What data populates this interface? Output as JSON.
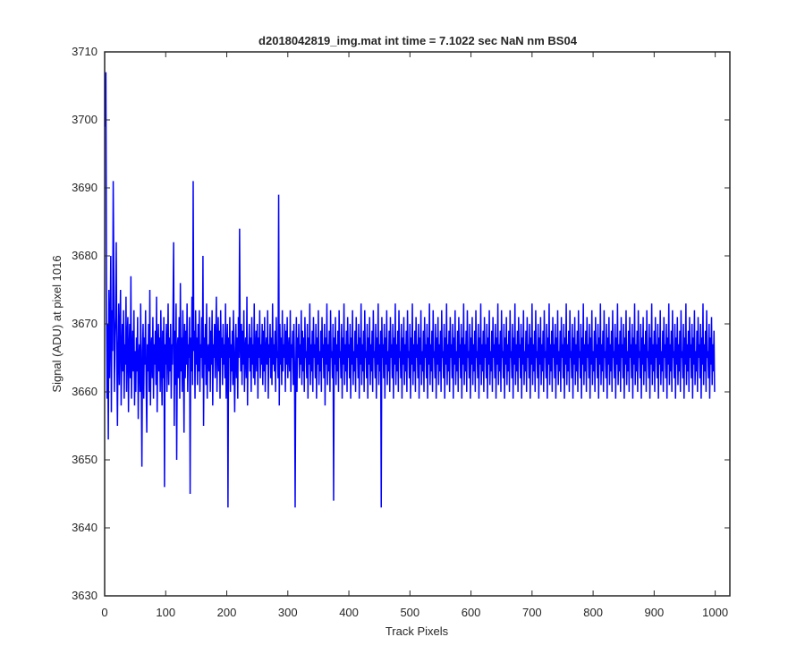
{
  "chart_data": {
    "type": "line",
    "title": "d2018042819_img.mat int time = 7.1022 sec  NaN nm BS04",
    "xlabel": "Track Pixels",
    "ylabel": "Signal (ADU) at pixel 1016",
    "xlim": [
      0,
      1024
    ],
    "ylim": [
      3630,
      3710
    ],
    "xticks": [
      0,
      100,
      200,
      300,
      400,
      500,
      600,
      700,
      800,
      900,
      1000
    ],
    "yticks": [
      3630,
      3640,
      3650,
      3660,
      3670,
      3680,
      3690,
      3700,
      3710
    ],
    "grid": false,
    "series": [
      {
        "color": "#0000ff",
        "x_start": 1,
        "x_step": 1,
        "values": [
          3699,
          3707,
          3676,
          3659,
          3670,
          3653,
          3675,
          3662,
          3669,
          3680,
          3657,
          3672,
          3666,
          3691,
          3678,
          3660,
          3668,
          3671,
          3682,
          3664,
          3655,
          3667,
          3673,
          3661,
          3669,
          3675,
          3658,
          3665,
          3670,
          3663,
          3672,
          3659,
          3667,
          3664,
          3674,
          3660,
          3668,
          3671,
          3657,
          3666,
          3670,
          3662,
          3677,
          3659,
          3665,
          3669,
          3663,
          3672,
          3658,
          3666,
          3660,
          3668,
          3663,
          3671,
          3656,
          3665,
          3667,
          3660,
          3673,
          3662,
          3649,
          3666,
          3670,
          3659,
          3668,
          3664,
          3672,
          3661,
          3654,
          3667,
          3663,
          3670,
          3660,
          3675,
          3658,
          3666,
          3668,
          3662,
          3671,
          3659,
          3667,
          3664,
          3669,
          3661,
          3674,
          3657,
          3666,
          3670,
          3663,
          3668,
          3660,
          3672,
          3665,
          3658,
          3669,
          3662,
          3671,
          3646,
          3667,
          3664,
          3670,
          3660,
          3666,
          3673,
          3661,
          3668,
          3663,
          3670,
          3659,
          3667,
          3664,
          3672,
          3682,
          3655,
          3669,
          3661,
          3673,
          3650,
          3666,
          3668,
          3662,
          3671,
          3659,
          3676,
          3663,
          3668,
          3660,
          3672,
          3666,
          3654,
          3670,
          3662,
          3669,
          3664,
          3673,
          3660,
          3667,
          3665,
          3671,
          3645,
          3668,
          3663,
          3674,
          3661,
          3691,
          3666,
          3669,
          3659,
          3672,
          3664,
          3668,
          3661,
          3670,
          3663,
          3672,
          3660,
          3667,
          3665,
          3671,
          3662,
          3680,
          3655,
          3668,
          3664,
          3670,
          3661,
          3673,
          3659,
          3666,
          3667,
          3663,
          3671,
          3660,
          3669,
          3664,
          3672,
          3658,
          3667,
          3665,
          3670,
          3662,
          3668,
          3674,
          3660,
          3666,
          3671,
          3663,
          3669,
          3659,
          3672,
          3665,
          3668,
          3661,
          3670,
          3664,
          3667,
          3662,
          3673,
          3659,
          3666,
          3670,
          3643,
          3668,
          3665,
          3671,
          3660,
          3667,
          3663,
          3669,
          3661,
          3672,
          3664,
          3657,
          3666,
          3670,
          3662,
          3668,
          3659,
          3671,
          3665,
          3684,
          3667,
          3663,
          3670,
          3661,
          3669,
          3664,
          3672,
          3660,
          3666,
          3668,
          3662,
          3674,
          3658,
          3667,
          3665,
          3670,
          3663,
          3668,
          3660,
          3671,
          3664,
          3667,
          3662,
          3673,
          3661,
          3666,
          3669,
          3663,
          3670,
          3659,
          3668,
          3665,
          3672,
          3662,
          3667,
          3664,
          3670,
          3661,
          3669,
          3663,
          3671,
          3660,
          3666,
          3668,
          3664,
          3672,
          3659,
          3667,
          3665,
          3670,
          3662,
          3668,
          3661,
          3673,
          3664,
          3667,
          3663,
          3669,
          3660,
          3671,
          3665,
          3666,
          3662,
          3689,
          3658,
          3670,
          3664,
          3668,
          3661,
          3672,
          3663,
          3667,
          3665,
          3670,
          3660,
          3669,
          3664,
          3671,
          3662,
          3666,
          3668,
          3663,
          3672,
          3660,
          3667,
          3665,
          3669,
          3661,
          3670,
          3664,
          3643,
          3663,
          3671,
          3660,
          3668,
          3665,
          3670,
          3662,
          3667,
          3664,
          3672,
          3661,
          3669,
          3663,
          3668,
          3660,
          3671,
          3665,
          3666,
          3662,
          3670,
          3659,
          3668,
          3664,
          3673,
          3661,
          3667,
          3663,
          3669,
          3660,
          3671,
          3665,
          3667,
          3662,
          3670,
          3659,
          3668,
          3664,
          3672,
          3661,
          3666,
          3663,
          3669,
          3660,
          3671,
          3665,
          3667,
          3662,
          3670,
          3658,
          3668,
          3664,
          3673,
          3661,
          3667,
          3663,
          3669,
          3660,
          3672,
          3665,
          3666,
          3662,
          3670,
          3644,
          3668,
          3664,
          3671,
          3661,
          3667,
          3663,
          3669,
          3660,
          3672,
          3665,
          3666,
          3662,
          3670,
          3659,
          3668,
          3664,
          3673,
          3661,
          3667,
          3663,
          3669,
          3660,
          3671,
          3665,
          3667,
          3662,
          3670,
          3659,
          3668,
          3664,
          3672,
          3661,
          3666,
          3663,
          3669,
          3660,
          3671,
          3665,
          3667,
          3662,
          3670,
          3659,
          3668,
          3664,
          3673,
          3661,
          3667,
          3663,
          3669,
          3660,
          3672,
          3665,
          3666,
          3662,
          3670,
          3659,
          3668,
          3664,
          3671,
          3661,
          3667,
          3663,
          3669,
          3660,
          3672,
          3665,
          3666,
          3662,
          3670,
          3659,
          3668,
          3664,
          3673,
          3661,
          3667,
          3663,
          3669,
          3643,
          3671,
          3665,
          3667,
          3662,
          3670,
          3659,
          3668,
          3664,
          3672,
          3661,
          3666,
          3663,
          3669,
          3660,
          3671,
          3665,
          3667,
          3662,
          3670,
          3659,
          3668,
          3664,
          3673,
          3661,
          3667,
          3663,
          3669,
          3660,
          3672,
          3665,
          3666,
          3662,
          3670,
          3659,
          3668,
          3664,
          3671,
          3661,
          3667,
          3663,
          3669,
          3660,
          3672,
          3665,
          3666,
          3662,
          3670,
          3659,
          3668,
          3664,
          3673,
          3661,
          3667,
          3663,
          3669,
          3660,
          3671,
          3665,
          3667,
          3662,
          3670,
          3659,
          3668,
          3664,
          3672,
          3661,
          3666,
          3663,
          3669,
          3660,
          3671,
          3665,
          3667,
          3662,
          3670,
          3659,
          3668,
          3664,
          3673,
          3661,
          3667,
          3663,
          3669,
          3660,
          3672,
          3665,
          3666,
          3662,
          3670,
          3659,
          3668,
          3664,
          3671,
          3661,
          3667,
          3663,
          3669,
          3660,
          3672,
          3665,
          3666,
          3662,
          3670,
          3659,
          3668,
          3664,
          3673,
          3661,
          3667,
          3663,
          3669,
          3660,
          3671,
          3665,
          3667,
          3662,
          3670,
          3659,
          3668,
          3664,
          3672,
          3661,
          3666,
          3663,
          3669,
          3660,
          3671,
          3665,
          3667,
          3662,
          3670,
          3659,
          3668,
          3664,
          3673,
          3661,
          3667,
          3663,
          3669,
          3660,
          3672,
          3665,
          3666,
          3662,
          3670,
          3659,
          3668,
          3664,
          3671,
          3661,
          3667,
          3663,
          3669,
          3660,
          3672,
          3665,
          3666,
          3662,
          3670,
          3659,
          3668,
          3664,
          3673,
          3661,
          3667,
          3663,
          3669,
          3660,
          3671,
          3665,
          3667,
          3662,
          3670,
          3659,
          3668,
          3664,
          3672,
          3661,
          3666,
          3663,
          3669,
          3660,
          3671,
          3665,
          3667,
          3662,
          3670,
          3659,
          3668,
          3664,
          3673,
          3661,
          3667,
          3663,
          3669,
          3660,
          3672,
          3665,
          3666,
          3662,
          3670,
          3659,
          3668,
          3664,
          3671,
          3661,
          3667,
          3663,
          3669,
          3660,
          3672,
          3665,
          3666,
          3662,
          3670,
          3659,
          3668,
          3664,
          3673,
          3661,
          3667,
          3663,
          3669,
          3660,
          3671,
          3665,
          3667,
          3662,
          3670,
          3659,
          3668,
          3664,
          3672,
          3661,
          3666,
          3663,
          3669,
          3660,
          3671,
          3665,
          3667,
          3662,
          3670,
          3659,
          3668,
          3664,
          3673,
          3661,
          3667,
          3663,
          3669,
          3660,
          3672,
          3665,
          3666,
          3662,
          3670,
          3659,
          3668,
          3664,
          3671,
          3661,
          3667,
          3663,
          3669,
          3660,
          3672,
          3665,
          3666,
          3662,
          3670,
          3659,
          3668,
          3664,
          3673,
          3661,
          3667,
          3663,
          3669,
          3660,
          3671,
          3665,
          3667,
          3662,
          3670,
          3659,
          3668,
          3664,
          3672,
          3661,
          3666,
          3663,
          3669,
          3660,
          3671,
          3665,
          3667,
          3662,
          3670,
          3659,
          3668,
          3664,
          3673,
          3661,
          3667,
          3663,
          3669,
          3660,
          3672,
          3665,
          3666,
          3662,
          3670,
          3659,
          3668,
          3664,
          3671,
          3661,
          3667,
          3663,
          3669,
          3660,
          3672,
          3665,
          3666,
          3662,
          3670,
          3659,
          3668,
          3664,
          3673,
          3661,
          3667,
          3663,
          3669,
          3660,
          3671,
          3665,
          3667,
          3662,
          3670,
          3659,
          3668,
          3664,
          3672,
          3661,
          3666,
          3663,
          3669,
          3660,
          3671,
          3665,
          3667,
          3662,
          3670,
          3659,
          3668,
          3664,
          3673,
          3661,
          3667,
          3663,
          3669,
          3660,
          3672,
          3665,
          3666,
          3662,
          3670,
          3659,
          3668,
          3664,
          3671,
          3661,
          3667,
          3663,
          3669,
          3660,
          3672,
          3665,
          3666,
          3662,
          3670,
          3659,
          3668,
          3664,
          3673,
          3661,
          3667,
          3663,
          3669,
          3660,
          3671,
          3665,
          3667,
          3662,
          3670,
          3659,
          3668,
          3664,
          3672,
          3661,
          3666,
          3663,
          3669,
          3660,
          3671,
          3665,
          3667,
          3662,
          3670,
          3659,
          3668,
          3664,
          3673,
          3661,
          3667,
          3663,
          3669,
          3660,
          3672,
          3665,
          3666,
          3662,
          3670,
          3659,
          3668,
          3664,
          3671,
          3661,
          3667,
          3663,
          3669,
          3660,
          3672,
          3665,
          3666,
          3662,
          3670,
          3659,
          3668,
          3664,
          3673,
          3661,
          3667,
          3663,
          3669,
          3660,
          3671,
          3665,
          3667,
          3662,
          3670,
          3659,
          3668,
          3664,
          3672,
          3661,
          3666,
          3663,
          3669,
          3660,
          3671,
          3665,
          3667,
          3662,
          3670,
          3659,
          3668,
          3664,
          3673,
          3661,
          3667,
          3663,
          3669,
          3660,
          3672,
          3665,
          3666,
          3662,
          3670,
          3659,
          3668,
          3664,
          3671,
          3661,
          3667,
          3663,
          3669,
          3660,
          3672,
          3665,
          3666,
          3662,
          3670,
          3659,
          3668,
          3664,
          3673,
          3661,
          3667,
          3663,
          3669,
          3660,
          3671,
          3665,
          3667,
          3662,
          3670,
          3659,
          3668,
          3664,
          3672,
          3661,
          3666,
          3663,
          3669,
          3660,
          3671,
          3665,
          3667,
          3662,
          3670,
          3659,
          3668,
          3664,
          3673,
          3661,
          3667,
          3663,
          3669,
          3660,
          3672,
          3665,
          3666,
          3662,
          3670,
          3659,
          3668,
          3664,
          3671,
          3661,
          3667,
          3663,
          3669,
          3660
        ]
      }
    ]
  }
}
